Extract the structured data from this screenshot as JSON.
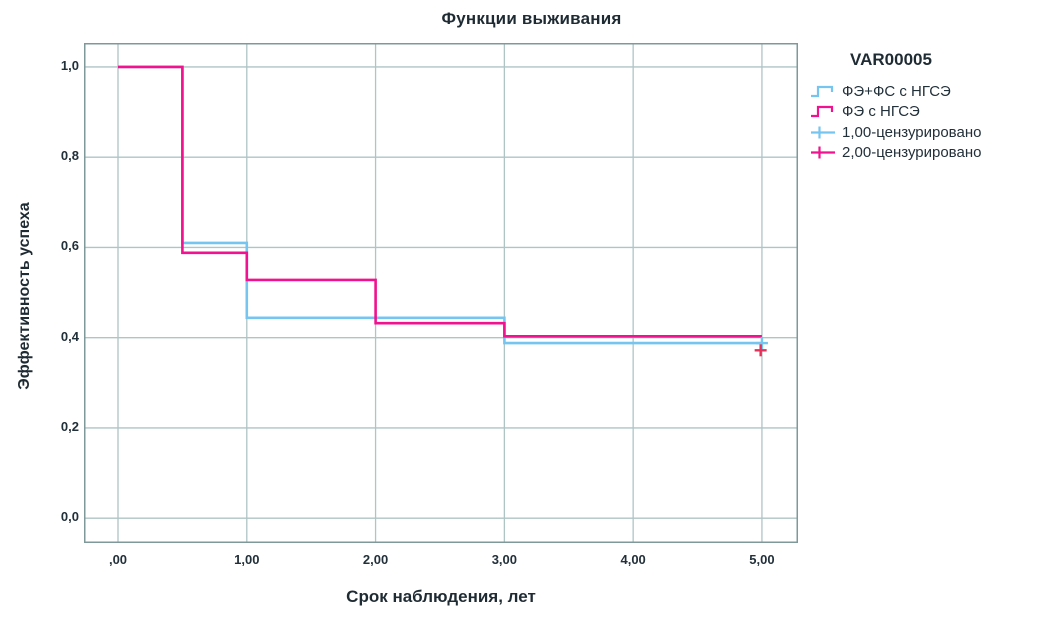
{
  "chart_data": {
    "type": "line",
    "subtype": "kaplan-meier-step-survival",
    "title": "Функции выживания",
    "xlabel": "Срок наблюдения, лет",
    "ylabel": "Эффективность успеха",
    "x_ticks": {
      "labels": [
        ",00",
        "1,00",
        "2,00",
        "3,00",
        "4,00",
        "5,00"
      ],
      "values": [
        0,
        1,
        2,
        3,
        4,
        5
      ]
    },
    "y_ticks": {
      "labels": [
        "0,0",
        "0,2",
        "0,4",
        "0,6",
        "0,8",
        "1,0"
      ],
      "values": [
        0,
        0.2,
        0.4,
        0.6,
        0.8,
        1.0
      ]
    },
    "xlim": [
      -0.264,
      5.28
    ],
    "ylim": [
      -0.055,
      1.053
    ],
    "grid": true,
    "legend_position": "right",
    "series": [
      {
        "name": "ФЭ+ФС с НГСЭ",
        "color": "#76c5f0",
        "points": [
          [
            0,
            1.0
          ],
          [
            0.5,
            1.0
          ],
          [
            0.5,
            0.61
          ],
          [
            1.0,
            0.61
          ],
          [
            1.0,
            0.444
          ],
          [
            3.0,
            0.444
          ],
          [
            3.0,
            0.388
          ],
          [
            5.0,
            0.388
          ]
        ]
      },
      {
        "name": "ФЭ с НГСЭ",
        "color": "#f0128e",
        "points": [
          [
            0,
            1.0
          ],
          [
            0.5,
            1.0
          ],
          [
            0.5,
            0.588
          ],
          [
            1.0,
            0.588
          ],
          [
            1.0,
            0.528
          ],
          [
            2.0,
            0.528
          ],
          [
            2.0,
            0.432
          ],
          [
            3.0,
            0.432
          ],
          [
            3.0,
            0.403
          ],
          [
            5.0,
            0.403
          ]
        ]
      }
    ],
    "censored_markers": [
      {
        "series": "ФЭ+ФС с НГСЭ",
        "color": "#76c5f0",
        "points": [
          [
            5.0,
            0.388
          ]
        ]
      },
      {
        "series": "ФЭ с НГСЭ",
        "color": "#e63058",
        "points": [
          [
            4.99,
            0.372
          ]
        ]
      }
    ],
    "legend": {
      "title": "VAR00005",
      "items": [
        {
          "label": "ФЭ+ФС с НГСЭ",
          "type": "step",
          "color": "#76c5f0"
        },
        {
          "label": "ФЭ с НГСЭ",
          "type": "step",
          "color": "#f0128e"
        },
        {
          "label": "1,00-цензурировано",
          "type": "censored",
          "color": "#76c5f0"
        },
        {
          "label": "2,00-цензурировано",
          "type": "censored",
          "color": "#f0128e"
        }
      ]
    },
    "colors": {
      "grid": "#afc4c5",
      "frame": "#7f999b",
      "text": "#1f2b33"
    }
  }
}
